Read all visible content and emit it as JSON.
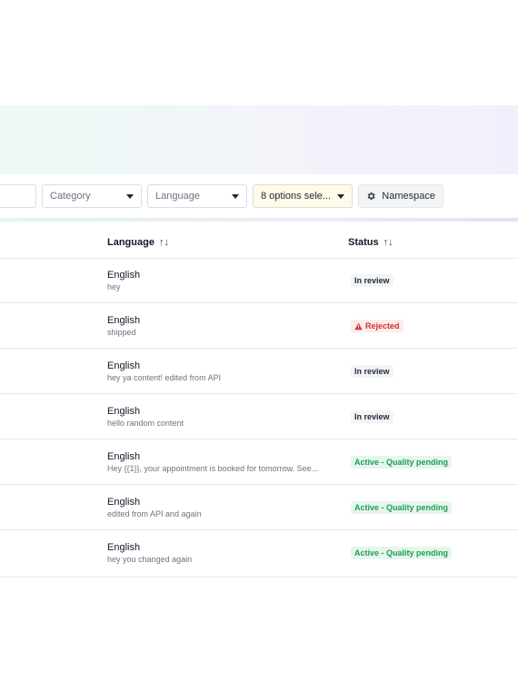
{
  "filters": {
    "category": {
      "label": "Category"
    },
    "language": {
      "label": "Language"
    },
    "status": {
      "label": "8 options sele..."
    },
    "namespace": {
      "label": "Namespace",
      "icon": "gear-icon"
    }
  },
  "table": {
    "columns": {
      "language": "Language",
      "status": "Status",
      "sort_icon": "↑↓"
    },
    "rows": [
      {
        "language": "English",
        "content": "hey",
        "status": "In review",
        "status_type": "review"
      },
      {
        "language": "English",
        "content": "shipped",
        "status": "Rejected",
        "status_type": "rejected"
      },
      {
        "language": "English",
        "content": "hey ya content! edited from API",
        "status": "In review",
        "status_type": "review"
      },
      {
        "language": "English",
        "content": "hello random content",
        "status": "In review",
        "status_type": "review"
      },
      {
        "language": "English",
        "content": "Hey {{1}}, your appointment is booked for tomorrow. See...",
        "status": "Active - Quality pending",
        "status_type": "active"
      },
      {
        "language": "English",
        "content": "edited from API and again",
        "status": "Active - Quality pending",
        "status_type": "active"
      },
      {
        "language": "English",
        "content": "hey you changed again",
        "status": "Active - Quality pending",
        "status_type": "active"
      }
    ]
  },
  "colors": {
    "active": "#1f9d55",
    "rejected": "#d0322f",
    "review": "#1f2937",
    "status_filter_bg": "#fffbe8"
  }
}
